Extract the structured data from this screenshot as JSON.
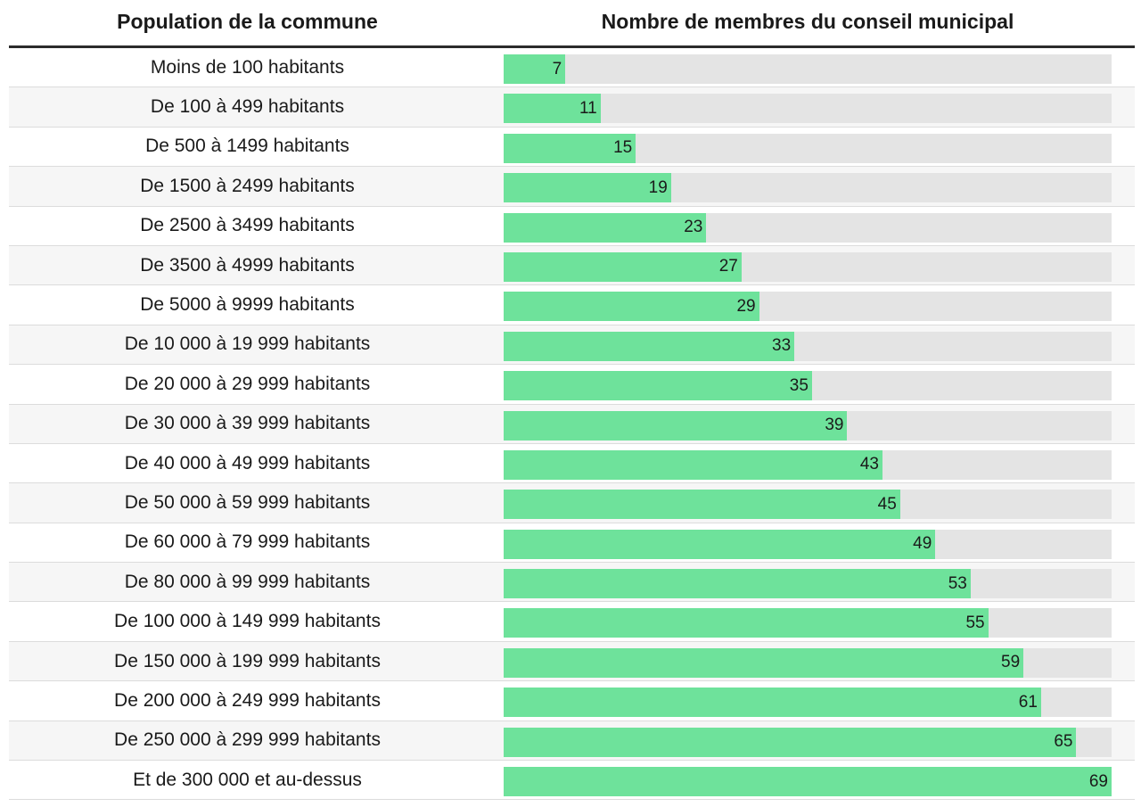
{
  "chart_data": {
    "type": "bar",
    "orientation": "horizontal",
    "columns": [
      "Population de la commune",
      "Nombre de membres du conseil municipal"
    ],
    "categories": [
      "Moins de 100 habitants",
      "De 100 à 499 habitants",
      "De 500 à 1499 habitants",
      "De 1500 à 2499 habitants",
      "De 2500 à 3499 habitants",
      "De 3500 à 4999 habitants",
      "De 5000 à 9999 habitants",
      "De 10 000 à 19 999 habitants",
      "De 20 000 à 29 999 habitants",
      "De 30 000 à 39 999 habitants",
      "De 40 000 à 49 999 habitants",
      "De 50 000 à 59 999 habitants",
      "De 60 000 à 79 999 habitants",
      "De 80 000 à 99 999 habitants",
      "De 100 000 à 149 999 habitants",
      "De 150 000 à 199 999 habitants",
      "De 200 000 à 249 999 habitants",
      "De 250 000 à 299 999 habitants",
      "Et de 300 000 et au-dessus"
    ],
    "values": [
      7,
      11,
      15,
      19,
      23,
      27,
      29,
      33,
      35,
      39,
      43,
      45,
      49,
      53,
      55,
      59,
      61,
      65,
      69
    ],
    "xlim": [
      0,
      69
    ],
    "bar_color": "#6ee29b",
    "track_color": "#e4e4e4"
  }
}
